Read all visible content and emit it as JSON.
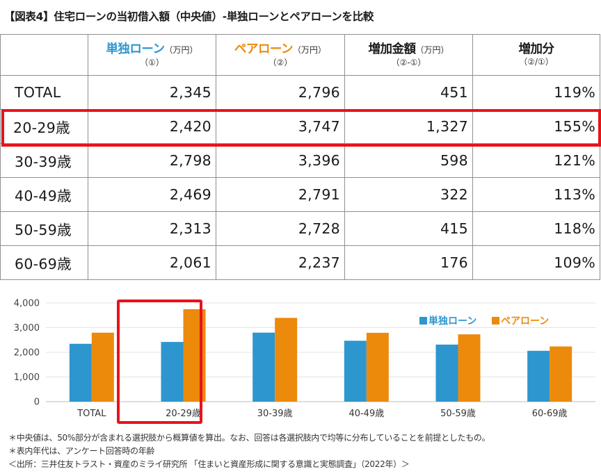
{
  "title": "【図表4】住宅ローンの当初借入額（中央値）-単独ローンとペアローンを比較",
  "table": {
    "headers": [
      {
        "label": "",
        "unit": "",
        "sub": ""
      },
      {
        "label": "単独ローン",
        "unit": "（万円）",
        "sub": "（①）"
      },
      {
        "label": "ペアローン",
        "unit": "（万円）",
        "sub": "（②）"
      },
      {
        "label": "増加金額",
        "unit": "（万円）",
        "sub": "（②-①）"
      },
      {
        "label": "増加分",
        "unit": "",
        "sub": "（②/①）"
      }
    ],
    "rows": [
      {
        "age": "TOTAL",
        "single": "2,345",
        "pair": "2,796",
        "increase": "451",
        "ratio": "119%"
      },
      {
        "age": "20-29歳",
        "single": "2,420",
        "pair": "3,747",
        "increase": "1,327",
        "ratio": "155%"
      },
      {
        "age": "30-39歳",
        "single": "2,798",
        "pair": "3,396",
        "increase": "598",
        "ratio": "121%"
      },
      {
        "age": "40-49歳",
        "single": "2,469",
        "pair": "2,791",
        "increase": "322",
        "ratio": "113%"
      },
      {
        "age": "50-59歳",
        "single": "2,313",
        "pair": "2,728",
        "increase": "415",
        "ratio": "118%"
      },
      {
        "age": "60-69歳",
        "single": "2,061",
        "pair": "2,237",
        "increase": "176",
        "ratio": "109%"
      }
    ],
    "highlighted_row": "20-29歳"
  },
  "chart_data": {
    "type": "bar",
    "title": "",
    "xlabel": "",
    "ylabel": "",
    "categories": [
      "TOTAL",
      "20-29歳",
      "30-39歳",
      "40-49歳",
      "50-59歳",
      "60-69歳"
    ],
    "series": [
      {
        "name": "単独ローン",
        "values": [
          2345,
          2420,
          2798,
          2469,
          2313,
          2061
        ],
        "color": "#2e96cf"
      },
      {
        "name": "ペアローン",
        "values": [
          2796,
          3747,
          3396,
          2791,
          2728,
          2237
        ],
        "color": "#ec8a0c"
      }
    ],
    "ylim": [
      0,
      4000
    ],
    "yticks": [
      0,
      1000,
      2000,
      3000,
      4000
    ],
    "ytick_labels": [
      "0",
      "1,000",
      "2,000",
      "3,000",
      "4,000"
    ],
    "grid": true,
    "legend": "top-right",
    "highlighted_category": "20-29歳",
    "highlight_color": "#e8121c"
  },
  "notes": [
    "＊中央値は、50%部分が含まれる選択肢から概算値を算出。なお、回答は各選択肢内で均等に分布していることを前提としたもの。",
    "＊表内年代は、アンケート回答時の年齢",
    "＜出所：三井住友トラスト・資産のミライ研究所 「住まいと資産形成に関する意識と実態調査」（2022年）＞"
  ]
}
